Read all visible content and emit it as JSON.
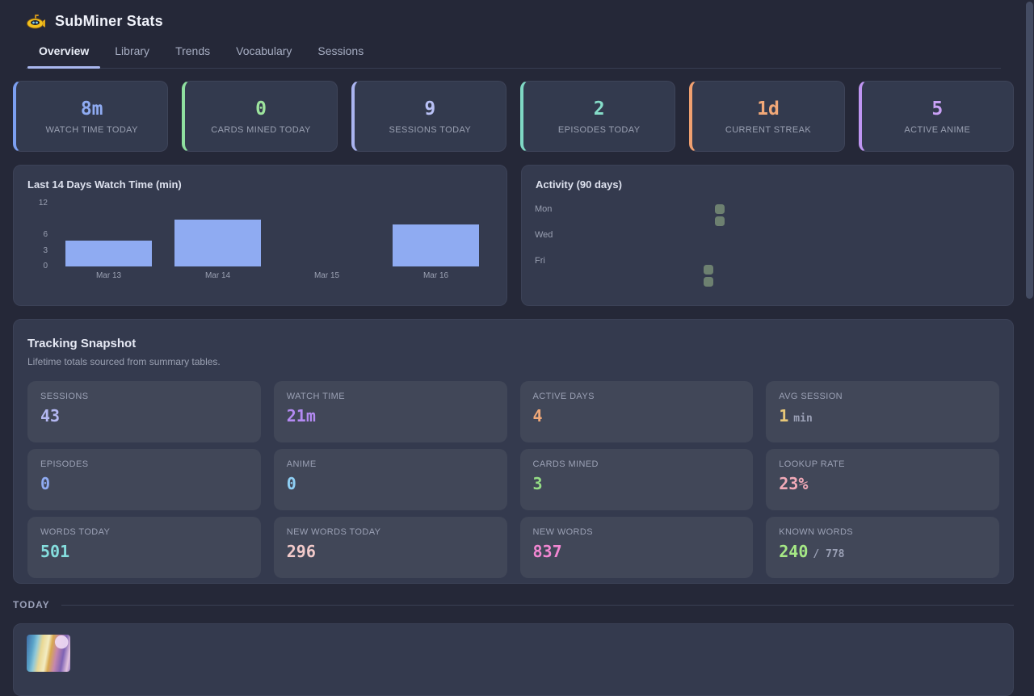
{
  "app": {
    "title": "SubMiner Stats",
    "logo": "submarine-icon"
  },
  "nav": {
    "tabs": [
      {
        "label": "Overview",
        "active": true
      },
      {
        "label": "Library",
        "active": false
      },
      {
        "label": "Trends",
        "active": false
      },
      {
        "label": "Vocabulary",
        "active": false
      },
      {
        "label": "Sessions",
        "active": false
      }
    ]
  },
  "stat_cards": [
    {
      "value": "8m",
      "label": "WATCH TIME TODAY",
      "color": "#8fabf2",
      "accent": "#7c9ff0"
    },
    {
      "value": "0",
      "label": "CARDS MINED TODAY",
      "color": "#9de49d",
      "accent": "#8fe0a0"
    },
    {
      "value": "9",
      "label": "SESSIONS TODAY",
      "color": "#b8c0f5",
      "accent": "#aab4f0"
    },
    {
      "value": "2",
      "label": "EPISODES TODAY",
      "color": "#85dcc8",
      "accent": "#7fd8c4"
    },
    {
      "value": "1d",
      "label": "CURRENT STREAK",
      "color": "#f2a878",
      "accent": "#f0a070"
    },
    {
      "value": "5",
      "label": "ACTIVE ANIME",
      "color": "#c9a0f5",
      "accent": "#bf95f2"
    }
  ],
  "chart_data": {
    "type": "bar",
    "title": "Last 14 Days Watch Time (min)",
    "categories": [
      "Mar 13",
      "Mar 14",
      "Mar 15",
      "Mar 16"
    ],
    "values": [
      5,
      9,
      0,
      8
    ],
    "yticks": [
      12,
      6,
      3,
      0
    ],
    "ylim": [
      0,
      12
    ],
    "xlabel": "",
    "ylabel": "",
    "grid": false,
    "bar_color": "#8fabf2"
  },
  "activity": {
    "title": "Activity (90 days)",
    "day_labels": [
      "Mon",
      "Wed",
      "Fri"
    ],
    "cell_color": "#6d8070",
    "cells": [
      {
        "col": 14,
        "row": 1
      },
      {
        "col": 14,
        "row": 2
      },
      {
        "col": 13,
        "row": 6
      },
      {
        "col": 13,
        "row": 7
      }
    ]
  },
  "snapshot": {
    "title": "Tracking Snapshot",
    "subtitle": "Lifetime totals sourced from summary tables.",
    "tiles": [
      {
        "label": "SESSIONS",
        "value": "43",
        "suffix": "",
        "color": "#b4b8f2"
      },
      {
        "label": "WATCH TIME",
        "value": "21m",
        "suffix": "",
        "color": "#b38af2"
      },
      {
        "label": "ACTIVE DAYS",
        "value": "4",
        "suffix": "",
        "color": "#f0a878"
      },
      {
        "label": "AVG SESSION",
        "value": "1",
        "suffix": "min",
        "color": "#e8c878"
      },
      {
        "label": "EPISODES",
        "value": "0",
        "suffix": "",
        "color": "#8fabf2"
      },
      {
        "label": "ANIME",
        "value": "0",
        "suffix": "",
        "color": "#8fd0f5"
      },
      {
        "label": "CARDS MINED",
        "value": "3",
        "suffix": "",
        "color": "#95dd85"
      },
      {
        "label": "LOOKUP RATE",
        "value": "23%",
        "suffix": "",
        "color": "#f2aab8"
      },
      {
        "label": "WORDS TODAY",
        "value": "501",
        "suffix": "",
        "color": "#85dede"
      },
      {
        "label": "NEW WORDS TODAY",
        "value": "296",
        "suffix": "",
        "color": "#f2caca"
      },
      {
        "label": "NEW WORDS",
        "value": "837",
        "suffix": "",
        "color": "#f287d2"
      },
      {
        "label": "KNOWN WORDS",
        "value": "240",
        "suffix": "/ 778",
        "color": "#a5e885"
      }
    ]
  },
  "today": {
    "label": "TODAY"
  }
}
